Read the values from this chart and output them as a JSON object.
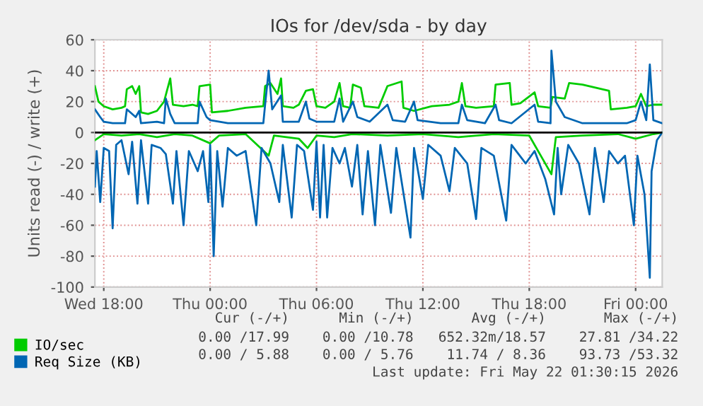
{
  "chart_data": {
    "type": "line",
    "title": "IOs for /dev/sda - by day",
    "ylabel": "Units read (-) / write (+)",
    "xlim": [
      "2026-05-20T17:30",
      "2026-05-22T01:30"
    ],
    "xticks": [
      {
        "value": "2026-05-20T18:00",
        "label": "Wed 18:00"
      },
      {
        "value": "2026-05-21T00:00",
        "label": "Thu 00:00"
      },
      {
        "value": "2026-05-21T06:00",
        "label": "Thu 06:00"
      },
      {
        "value": "2026-05-21T12:00",
        "label": "Thu 12:00"
      },
      {
        "value": "2026-05-21T18:00",
        "label": "Thu 18:00"
      },
      {
        "value": "2026-05-22T00:00",
        "label": "Fri 00:00"
      }
    ],
    "ylim": [
      -100,
      60
    ],
    "yticks": [
      -100,
      -80,
      -60,
      -40,
      -20,
      0,
      20,
      40,
      60
    ],
    "grid": true,
    "legend": "bottom",
    "marker": "none",
    "line_style": "solid",
    "ref_lines": [
      {
        "axis": "y",
        "value": 0,
        "label": null,
        "color": "#000000"
      }
    ],
    "annotations": [
      "Cur (-/+)      Min (-/+)       Avg (-/+)       Max (-/+)",
      "0.00 /17.99    0.00 /10.78   652.32m/18.57    27.81 /34.22",
      "0.00 / 5.88    0.00 / 5.76    11.74 / 8.36    93.73 /53.32",
      "Last update: Fri May 22 01:30:15 2026"
    ],
    "series": [
      {
        "name": "IO/sec",
        "color": "#00cc00",
        "x": [
          "2026-05-20T17:30",
          "2026-05-20T17:42",
          "2026-05-20T18:00",
          "2026-05-20T18:30",
          "2026-05-20T19:00",
          "2026-05-20T19:12",
          "2026-05-20T19:18",
          "2026-05-20T19:36",
          "2026-05-20T19:48",
          "2026-05-20T20:00",
          "2026-05-20T20:06",
          "2026-05-20T20:30",
          "2026-05-20T21:00",
          "2026-05-20T21:24",
          "2026-05-20T21:45",
          "2026-05-20T21:54",
          "2026-05-20T22:30",
          "2026-05-20T23:00",
          "2026-05-20T23:18",
          "2026-05-20T23:24",
          "2026-05-21T00:00",
          "2026-05-21T00:06",
          "2026-05-21T01:00",
          "2026-05-21T02:00",
          "2026-05-21T03:00",
          "2026-05-21T03:06",
          "2026-05-21T03:24",
          "2026-05-21T03:48",
          "2026-05-21T04:00",
          "2026-05-21T04:06",
          "2026-05-21T04:42",
          "2026-05-21T05:00",
          "2026-05-21T05:24",
          "2026-05-21T05:48",
          "2026-05-21T06:00",
          "2026-05-21T06:30",
          "2026-05-21T07:00",
          "2026-05-21T07:18",
          "2026-05-21T07:30",
          "2026-05-21T07:54",
          "2026-05-21T08:03",
          "2026-05-21T08:30",
          "2026-05-21T08:42",
          "2026-05-21T09:30",
          "2026-05-21T10:00",
          "2026-05-21T10:48",
          "2026-05-21T10:54",
          "2026-05-21T11:30",
          "2026-05-21T12:30",
          "2026-05-21T13:30",
          "2026-05-21T14:00",
          "2026-05-21T14:12",
          "2026-05-21T14:24",
          "2026-05-21T15:00",
          "2026-05-21T16:00",
          "2026-05-21T16:06",
          "2026-05-21T16:54",
          "2026-05-21T17:00",
          "2026-05-21T17:30",
          "2026-05-21T18:18",
          "2026-05-21T18:30",
          "2026-05-21T19:12",
          "2026-05-21T19:18",
          "2026-05-21T20:00",
          "2026-05-21T20:15",
          "2026-05-21T21:00",
          "2026-05-21T22:30",
          "2026-05-21T22:36",
          "2026-05-21T23:30",
          "2026-05-22T00:00",
          "2026-05-22T00:18",
          "2026-05-22T00:36",
          "2026-05-22T01:00",
          "2026-05-22T01:30"
        ],
        "values": [
          30,
          20,
          17,
          15,
          16,
          17,
          28,
          30,
          25,
          30,
          13,
          12,
          14,
          20,
          35,
          18,
          17,
          18,
          17,
          30,
          31,
          13,
          14,
          16,
          17,
          30,
          32,
          25,
          35,
          17,
          16,
          18,
          27,
          28,
          17,
          16,
          20,
          32,
          17,
          16,
          31,
          29,
          17,
          16,
          30,
          33,
          16,
          14,
          17,
          18,
          20,
          32,
          17,
          16,
          17,
          31,
          32,
          18,
          19,
          26,
          17,
          16,
          23,
          22,
          32,
          31,
          27,
          15,
          16,
          17,
          25,
          17,
          18,
          18
        ]
      },
      {
        "color": "#00cc00",
        "x": [
          "2026-05-20T17:30",
          "2026-05-20T18:00",
          "2026-05-20T19:00",
          "2026-05-20T20:00",
          "2026-05-20T21:00",
          "2026-05-20T22:00",
          "2026-05-20T23:00",
          "2026-05-21T00:00",
          "2026-05-21T00:30",
          "2026-05-21T02:00",
          "2026-05-21T03:18",
          "2026-05-21T03:36",
          "2026-05-21T05:00",
          "2026-05-21T05:30",
          "2026-05-21T06:00",
          "2026-05-21T07:00",
          "2026-05-21T08:00",
          "2026-05-21T10:00",
          "2026-05-21T12:00",
          "2026-05-21T14:00",
          "2026-05-21T16:00",
          "2026-05-21T18:00",
          "2026-05-21T19:15",
          "2026-05-21T19:30",
          "2026-05-21T21:00",
          "2026-05-21T23:00",
          "2026-05-22T00:00",
          "2026-05-22T01:00",
          "2026-05-22T01:30"
        ],
        "values": [
          -5,
          -1,
          -2,
          -1,
          -3,
          -1,
          -2,
          -7,
          -2,
          -1,
          -15,
          -2,
          -4,
          -10,
          -2,
          -3,
          -1,
          -2,
          -1,
          -3,
          -1,
          -2,
          -27,
          -3,
          -2,
          -1,
          -4,
          -1,
          0
        ]
      },
      {
        "name": "Req Size (KB)",
        "color": "#0066b3",
        "x": [
          "2026-05-20T17:30",
          "2026-05-20T17:48",
          "2026-05-20T18:00",
          "2026-05-20T18:30",
          "2026-05-20T19:12",
          "2026-05-20T19:18",
          "2026-05-20T19:48",
          "2026-05-20T20:00",
          "2026-05-20T20:06",
          "2026-05-20T21:00",
          "2026-05-20T21:24",
          "2026-05-20T21:30",
          "2026-05-20T21:45",
          "2026-05-20T22:00",
          "2026-05-20T23:00",
          "2026-05-20T23:18",
          "2026-05-20T23:24",
          "2026-05-20T23:48",
          "2026-05-21T00:00",
          "2026-05-21T01:00",
          "2026-05-21T02:00",
          "2026-05-21T03:00",
          "2026-05-21T03:06",
          "2026-05-21T03:18",
          "2026-05-21T03:30",
          "2026-05-21T04:00",
          "2026-05-21T04:06",
          "2026-05-21T05:00",
          "2026-05-21T05:24",
          "2026-05-21T05:36",
          "2026-05-21T06:00",
          "2026-05-21T07:00",
          "2026-05-21T07:18",
          "2026-05-21T07:30",
          "2026-05-21T08:03",
          "2026-05-21T08:18",
          "2026-05-21T09:00",
          "2026-05-21T10:00",
          "2026-05-21T10:18",
          "2026-05-21T11:00",
          "2026-05-21T11:30",
          "2026-05-21T11:42",
          "2026-05-21T13:00",
          "2026-05-21T14:00",
          "2026-05-21T14:12",
          "2026-05-21T14:30",
          "2026-05-21T15:30",
          "2026-05-21T16:06",
          "2026-05-21T16:18",
          "2026-05-21T17:00",
          "2026-05-21T18:18",
          "2026-05-21T18:30",
          "2026-05-21T19:12",
          "2026-05-21T19:15",
          "2026-05-21T19:30",
          "2026-05-21T20:00",
          "2026-05-21T21:00",
          "2026-05-21T22:30",
          "2026-05-21T23:30",
          "2026-05-22T00:00",
          "2026-05-22T00:18",
          "2026-05-22T00:36",
          "2026-05-22T00:48",
          "2026-05-22T01:00",
          "2026-05-22T01:30"
        ],
        "values": [
          15,
          10,
          7,
          6,
          6,
          15,
          10,
          14,
          6,
          7,
          6,
          22,
          12,
          6,
          6,
          6,
          20,
          10,
          8,
          6,
          6,
          6,
          18,
          40,
          15,
          24,
          7,
          7,
          20,
          9,
          7,
          7,
          22,
          7,
          20,
          10,
          7,
          18,
          8,
          7,
          20,
          8,
          6,
          6,
          18,
          8,
          6,
          18,
          8,
          6,
          18,
          7,
          6,
          53,
          20,
          10,
          6,
          6,
          6,
          8,
          20,
          8,
          44,
          8,
          6
        ]
      },
      {
        "color": "#0066b3",
        "x": [
          "2026-05-20T17:30",
          "2026-05-20T17:36",
          "2026-05-20T17:48",
          "2026-05-20T18:00",
          "2026-05-20T18:18",
          "2026-05-20T18:30",
          "2026-05-20T18:42",
          "2026-05-20T19:00",
          "2026-05-20T19:24",
          "2026-05-20T19:36",
          "2026-05-20T19:54",
          "2026-05-20T20:06",
          "2026-05-20T20:30",
          "2026-05-20T20:42",
          "2026-05-20T21:12",
          "2026-05-20T21:30",
          "2026-05-20T21:54",
          "2026-05-20T22:06",
          "2026-05-20T22:30",
          "2026-05-20T22:48",
          "2026-05-20T23:18",
          "2026-05-20T23:36",
          "2026-05-20T23:54",
          "2026-05-21T00:00",
          "2026-05-21T00:12",
          "2026-05-21T00:24",
          "2026-05-21T00:42",
          "2026-05-21T01:00",
          "2026-05-21T01:30",
          "2026-05-21T02:00",
          "2026-05-21T02:36",
          "2026-05-21T02:54",
          "2026-05-21T03:24",
          "2026-05-21T03:54",
          "2026-05-21T04:06",
          "2026-05-21T04:36",
          "2026-05-21T04:54",
          "2026-05-21T05:18",
          "2026-05-21T05:48",
          "2026-05-21T06:00",
          "2026-05-21T06:12",
          "2026-05-21T06:24",
          "2026-05-21T06:36",
          "2026-05-21T06:54",
          "2026-05-21T07:18",
          "2026-05-21T07:36",
          "2026-05-21T08:00",
          "2026-05-21T08:18",
          "2026-05-21T08:36",
          "2026-05-21T08:54",
          "2026-05-21T09:18",
          "2026-05-21T09:36",
          "2026-05-21T10:12",
          "2026-05-21T10:30",
          "2026-05-21T11:18",
          "2026-05-21T11:30",
          "2026-05-21T12:00",
          "2026-05-21T12:18",
          "2026-05-21T13:00",
          "2026-05-21T13:30",
          "2026-05-21T13:48",
          "2026-05-21T14:30",
          "2026-05-21T15:00",
          "2026-05-21T15:18",
          "2026-05-21T16:00",
          "2026-05-21T16:42",
          "2026-05-21T17:00",
          "2026-05-21T17:48",
          "2026-05-21T18:18",
          "2026-05-21T18:54",
          "2026-05-21T19:24",
          "2026-05-21T19:36",
          "2026-05-21T19:48",
          "2026-05-21T20:12",
          "2026-05-21T20:48",
          "2026-05-21T21:24",
          "2026-05-21T21:42",
          "2026-05-21T22:12",
          "2026-05-21T22:30",
          "2026-05-21T23:00",
          "2026-05-21T23:24",
          "2026-05-21T23:54",
          "2026-05-22T00:06",
          "2026-05-22T00:30",
          "2026-05-22T00:48",
          "2026-05-22T00:54",
          "2026-05-22T01:12",
          "2026-05-22T01:30"
        ],
        "values": [
          -35,
          -12,
          -45,
          -10,
          -12,
          -62,
          -8,
          -5,
          -27,
          -6,
          -46,
          -5,
          -46,
          -8,
          -10,
          -14,
          -46,
          -12,
          -60,
          -12,
          -25,
          -12,
          -45,
          -8,
          -80,
          -12,
          -48,
          -10,
          -15,
          -12,
          -60,
          -10,
          -20,
          -45,
          -8,
          -55,
          -8,
          -12,
          -50,
          -6,
          -55,
          -8,
          -55,
          -10,
          -20,
          -10,
          -35,
          -8,
          -53,
          -12,
          -60,
          -8,
          -52,
          -10,
          -68,
          -10,
          -43,
          -8,
          -15,
          -38,
          -10,
          -20,
          -56,
          -10,
          -15,
          -57,
          -8,
          -20,
          -12,
          -30,
          -53,
          -10,
          -40,
          -8,
          -20,
          -53,
          -10,
          -45,
          -12,
          -20,
          -15,
          -60,
          -15,
          -40,
          -94,
          -25,
          -5,
          0
        ]
      }
    ]
  }
}
